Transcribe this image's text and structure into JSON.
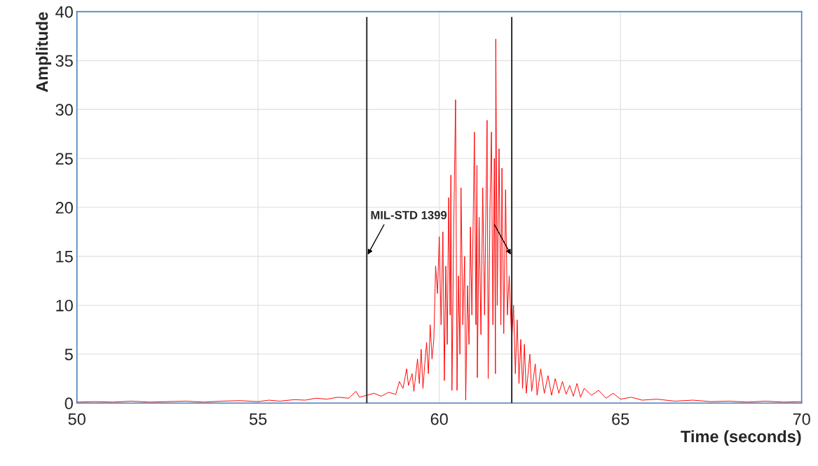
{
  "chart_data": {
    "type": "line",
    "xlabel": "Time (seconds)",
    "ylabel": "Amplitude",
    "x": [
      50.0,
      50.5,
      51,
      51.5,
      52,
      52.5,
      53,
      53.5,
      54,
      54.5,
      55,
      55.3,
      55.6,
      56,
      56.3,
      56.6,
      56.9,
      57.2,
      57.5,
      57.7,
      57.8,
      58,
      58.2,
      58.4,
      58.6,
      58.8,
      58.9,
      59.0,
      59.1,
      59.15,
      59.25,
      59.3,
      59.4,
      59.45,
      59.5,
      59.55,
      59.6,
      59.65,
      59.7,
      59.75,
      59.8,
      59.85,
      59.9,
      59.95,
      60.0,
      60.05,
      60.1,
      60.14,
      60.18,
      60.22,
      60.26,
      60.3,
      60.32,
      60.35,
      60.4,
      60.45,
      60.49,
      60.53,
      60.57,
      60.6,
      60.65,
      60.7,
      60.73,
      60.78,
      60.82,
      60.86,
      60.9,
      60.97,
      61.01,
      61.04,
      61.05,
      61.1,
      61.15,
      61.2,
      61.25,
      61.32,
      61.35,
      61.4,
      61.44,
      61.48,
      61.52,
      61.55,
      61.56,
      61.6,
      61.65,
      61.7,
      61.73,
      61.78,
      61.83,
      61.88,
      61.93,
      62.0,
      62.05,
      62.1,
      62.15,
      62.2,
      62.25,
      62.3,
      62.35,
      62.4,
      62.5,
      62.55,
      62.65,
      62.7,
      62.8,
      62.9,
      63.0,
      63.1,
      63.2,
      63.3,
      63.4,
      63.5,
      63.6,
      63.7,
      63.8,
      63.9,
      64.0,
      64.2,
      64.4,
      64.6,
      64.8,
      65.0,
      65.3,
      65.6,
      66,
      66.5,
      67,
      67.5,
      68,
      68.5,
      69,
      69.5,
      70
    ],
    "series": [
      {
        "color": "#ff0000",
        "values": [
          0.1,
          0.15,
          0.1,
          0.2,
          0.1,
          0.15,
          0.2,
          0.1,
          0.2,
          0.25,
          0.15,
          0.3,
          0.2,
          0.35,
          0.3,
          0.5,
          0.4,
          0.6,
          0.5,
          1.2,
          0.6,
          0.8,
          1.0,
          0.7,
          1.1,
          0.9,
          2.2,
          1.5,
          3.5,
          1.8,
          3.0,
          1.2,
          4.5,
          2.0,
          5.5,
          1.5,
          4.0,
          6.2,
          3.0,
          8.0,
          4.5,
          6.5,
          14.0,
          11.2,
          17.0,
          8.0,
          17.5,
          2.3,
          14.0,
          6.0,
          21.0,
          9.0,
          23.3,
          1.3,
          18.0,
          31.0,
          1.3,
          13.0,
          5.0,
          22.0,
          8.0,
          15.0,
          0.3,
          12.0,
          6.0,
          18.0,
          9.0,
          27.7,
          8.0,
          24.3,
          2.6,
          19.0,
          7.0,
          22.0,
          9.0,
          28.9,
          2.5,
          20.0,
          27.7,
          8.0,
          25.0,
          3.0,
          37.2,
          10.0,
          26.0,
          8.0,
          24.0,
          7.1,
          21.8,
          9.0,
          13.0,
          6.2,
          10.0,
          3.0,
          8.5,
          2.0,
          6.5,
          1.5,
          6.0,
          1.0,
          5.0,
          1.2,
          4.0,
          0.8,
          3.5,
          1.0,
          2.8,
          0.8,
          2.5,
          1.0,
          2.2,
          0.9,
          1.8,
          0.7,
          2.0,
          0.6,
          1.5,
          0.8,
          1.3,
          0.5,
          1.0,
          0.4,
          0.6,
          0.3,
          0.4,
          0.2,
          0.3,
          0.15,
          0.2,
          0.1,
          0.2,
          0.1,
          0.15
        ]
      }
    ],
    "xlim": [
      50,
      70
    ],
    "ylim": [
      0,
      40
    ],
    "xticks": [
      50,
      55,
      60,
      65,
      70
    ],
    "yticks": [
      0,
      5,
      10,
      15,
      20,
      25,
      30,
      35,
      40
    ],
    "grid": true,
    "marker": "none",
    "line_style": "solid",
    "ref_lines": [
      {
        "axis": "x",
        "value": 58,
        "color": "#333333"
      },
      {
        "axis": "x",
        "value": 62,
        "color": "#333333"
      }
    ],
    "annotations": [
      {
        "text": "MIL-STD 1399",
        "x": 58,
        "y": 15
      }
    ]
  }
}
